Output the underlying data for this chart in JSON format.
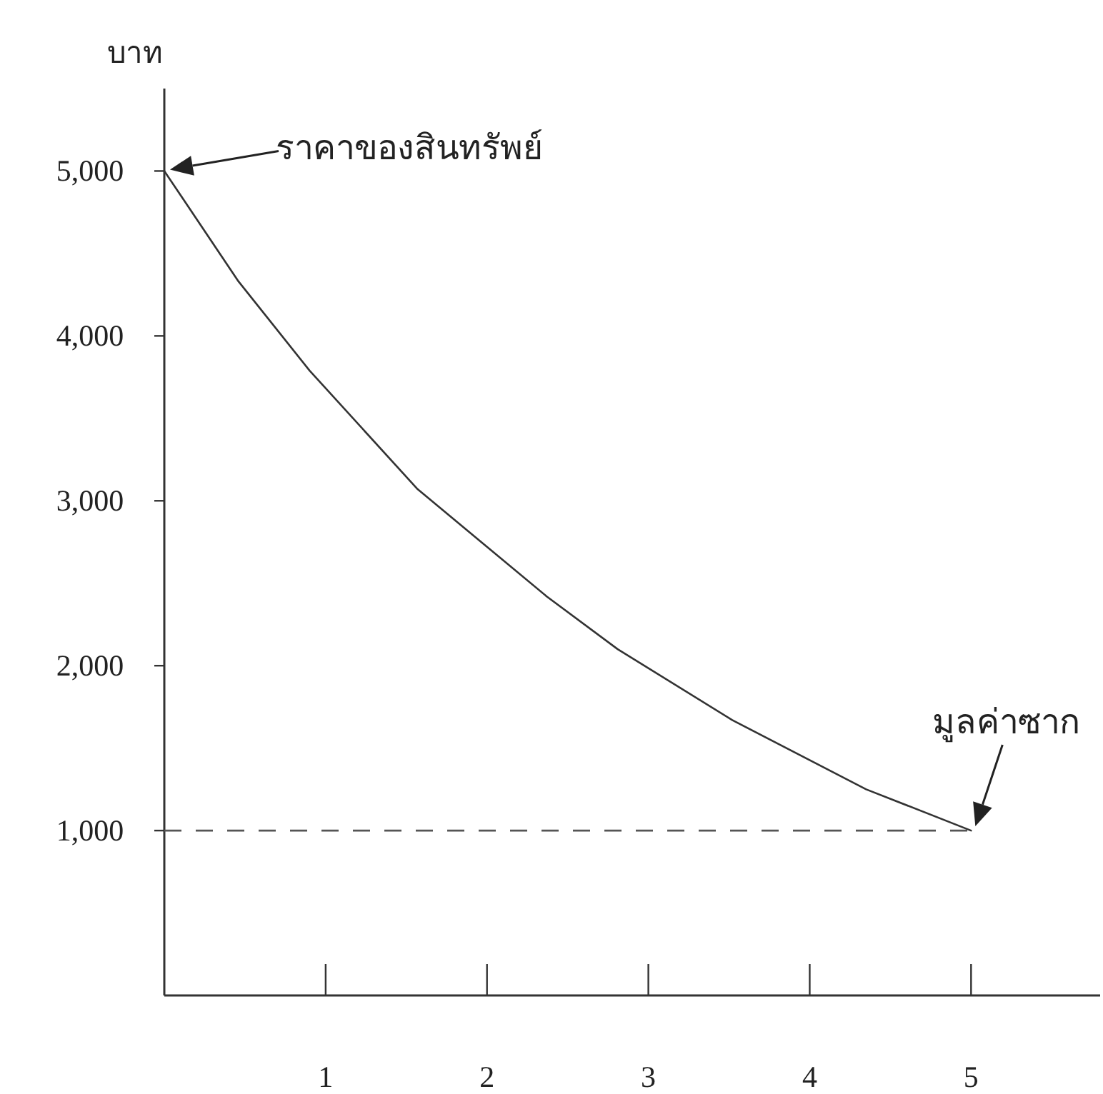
{
  "chart_data": {
    "type": "line",
    "ylabel": "บาท",
    "x": [
      0,
      0.46,
      0.9,
      1.57,
      2.37,
      2.81,
      3.52,
      4.35,
      5
    ],
    "series": [
      {
        "color": "#333333",
        "values": [
          5000,
          4330,
          3790,
          3070,
          2420,
          2100,
          1670,
          1250,
          1000
        ]
      }
    ],
    "xlim": [
      0,
      5.8
    ],
    "ylim": [
      0,
      5500
    ],
    "xticks": [
      1,
      2,
      3,
      4,
      5
    ],
    "yticks": [
      {
        "value": 1000,
        "label": "1,000"
      },
      {
        "value": 2000,
        "label": "2,000"
      },
      {
        "value": 3000,
        "label": "3,000"
      },
      {
        "value": 4000,
        "label": "4,000"
      },
      {
        "value": 5000,
        "label": "5,000"
      }
    ],
    "ref_lines": [
      {
        "axis": "y",
        "value": 1000,
        "line_style": "dashed",
        "color": "#555555"
      }
    ],
    "annotations": [
      "ราคาของสินทรัพย์",
      {
        "text": "มูลค่าซาก",
        "x": 5,
        "y": 1000
      }
    ]
  }
}
